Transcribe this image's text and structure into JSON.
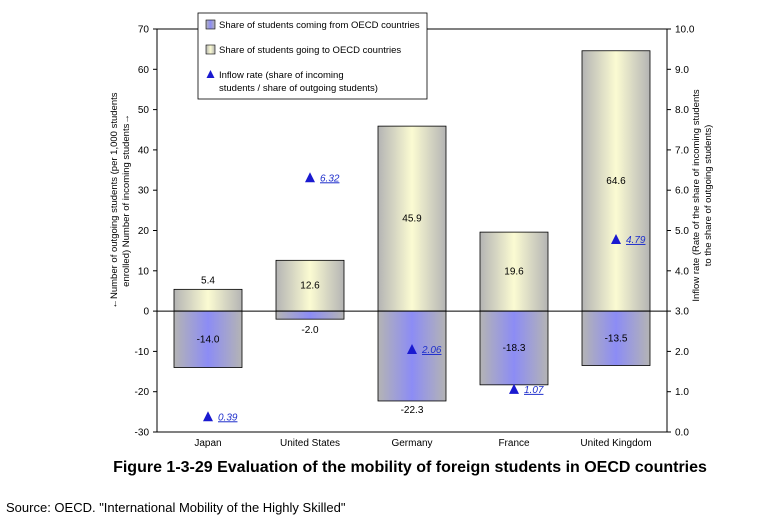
{
  "chart_data": {
    "type": "bar",
    "categories": [
      "Japan",
      "United States",
      "Germany",
      "France",
      "United Kingdom"
    ],
    "series": [
      {
        "name": "Share of students coming from OECD countries",
        "values": [
          -14.0,
          -2.0,
          -22.3,
          -18.3,
          -13.5
        ],
        "value_labels": [
          "-14.0",
          "-2.0",
          "-22.3",
          "-18.3",
          "-13.5"
        ]
      },
      {
        "name": "Share of students going to OECD countries",
        "values": [
          5.4,
          12.6,
          45.9,
          19.6,
          64.6
        ],
        "value_labels": [
          "5.4",
          "12.6",
          "45.9",
          "19.6",
          "64.6"
        ]
      },
      {
        "name": "Inflow rate (share of incoming students / share of outgoing students)",
        "axis": "right",
        "values": [
          0.39,
          6.32,
          2.06,
          1.07,
          4.79
        ],
        "value_labels": [
          "0.39",
          "6.32",
          "2.06",
          "1.07",
          "4.79"
        ]
      }
    ],
    "legend_lines": [
      [
        "Share of students coming from OECD countries"
      ],
      [
        "Share of students going to OECD countries"
      ],
      [
        "Inflow rate (share of incoming",
        "students / share of outgoing students)"
      ]
    ],
    "left_axis": {
      "ylim": [
        -30,
        70
      ],
      "ticks": [
        70,
        60,
        50,
        40,
        30,
        20,
        10,
        0,
        -10,
        -20,
        -30
      ],
      "tick_labels": [
        "70",
        "60",
        "50",
        "40",
        "30",
        "20",
        "10",
        "0",
        "-10",
        "-20",
        "-30"
      ],
      "title_lines": [
        "←Number of outgoing students (per 1,000 students",
        "enrolled) Number of incoming students→"
      ]
    },
    "right_axis": {
      "ylim": [
        0,
        10
      ],
      "ticks": [
        10,
        9,
        8,
        7,
        6,
        5,
        4,
        3,
        2,
        1,
        0
      ],
      "tick_labels": [
        "10.0",
        "9.0",
        "8.0",
        "7.0",
        "6.0",
        "5.0",
        "4.0",
        "3.0",
        "2.0",
        "1.0",
        "0.0"
      ],
      "title_lines": [
        "Inflow rate (Rate of the share of incoming students",
        "to the share of outgoing students)"
      ]
    },
    "grid": false,
    "legend_position": "top-center",
    "colors": {
      "incoming_bar": "#8c8cf5",
      "outgoing_bar": "#fbfbd2",
      "bar_edge": "#b4b4b4",
      "marker": "#1a1ad0",
      "rate_label": "#1f2fcc"
    }
  },
  "figure": {
    "title": "Figure 1-3-29 Evaluation of the mobility of foreign students in OECD countries",
    "source": "Source: OECD. \"International Mobility of the Highly Skilled\""
  }
}
